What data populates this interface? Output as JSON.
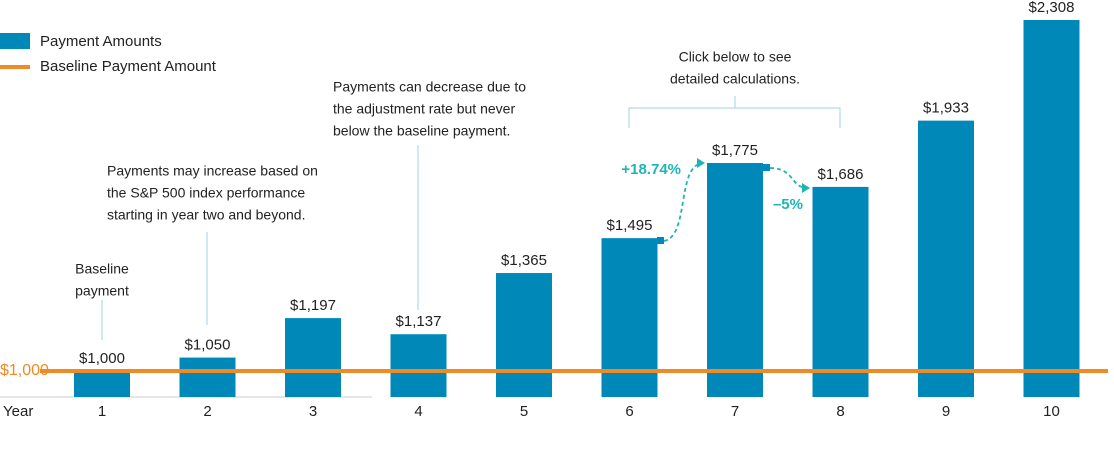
{
  "chart_data": {
    "type": "bar",
    "x_label": "Year",
    "categories": [
      "1",
      "2",
      "3",
      "4",
      "5",
      "6",
      "7",
      "8",
      "9",
      "10"
    ],
    "series": [
      {
        "name": "Payment Amounts",
        "color": "#0088b9",
        "values": [
          1000,
          1050,
          1197,
          1137,
          1365,
          1495,
          1775,
          1686,
          1933,
          2308
        ],
        "value_labels": [
          "$1,000",
          "$1,050",
          "$1,197",
          "$1,137",
          "$1,365",
          "$1,495",
          "$1,775",
          "$1,686",
          "$1,933",
          "$2,308"
        ]
      }
    ],
    "baseline": {
      "name": "Baseline Payment Amount",
      "value": 1000,
      "label": "$1,000",
      "color": "#f08a24"
    },
    "ylim": [
      903,
      2308
    ],
    "annotations": [
      {
        "lines": [
          "Baseline",
          "payment"
        ]
      },
      {
        "lines": [
          "Payments may increase based on",
          "the S&P 500 index performance",
          "starting in year two and beyond."
        ]
      },
      {
        "lines": [
          "Payments can decrease due to",
          "the adjustment rate but never",
          "below the baseline payment."
        ]
      },
      {
        "lines": [
          "Click below to see",
          "detailed calculations."
        ]
      }
    ],
    "changes": [
      {
        "text": "+18.74%",
        "color": "#1fb5b5"
      },
      {
        "text": "–5%",
        "color": "#1fb5b5"
      }
    ]
  }
}
